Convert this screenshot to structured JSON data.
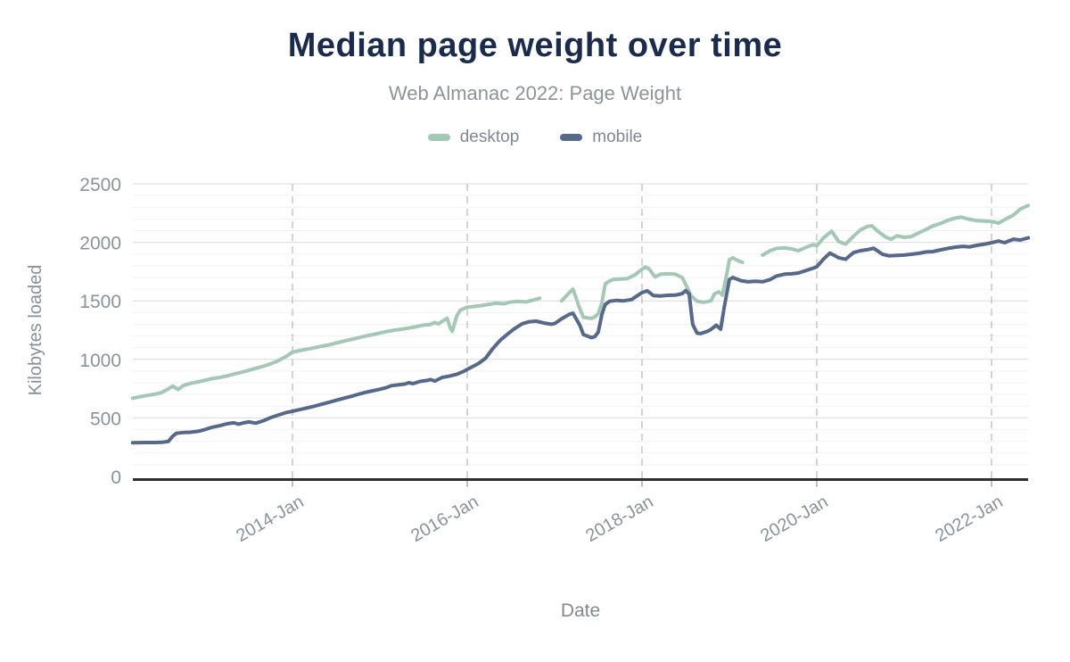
{
  "header": {
    "title": "Median page weight over time",
    "subtitle": "Web Almanac 2022: Page Weight"
  },
  "legend": [
    {
      "name": "desktop",
      "label": "desktop",
      "color": "#a3c9b4"
    },
    {
      "name": "mobile",
      "label": "mobile",
      "color": "#57698b"
    }
  ],
  "colors": {
    "title": "#1b2b4d",
    "subtitle": "#8d939b",
    "axis_line": "#2f2f2f",
    "tick_text": "#8a929b",
    "grid_minor": "#f2f2f2",
    "grid_major": "#dcdcdc",
    "grid_vertical_dashed": "#c9c9c9",
    "desktop": "#a3c9b4",
    "mobile": "#57698b"
  },
  "chart_data": {
    "type": "line",
    "title": "Median page weight over time",
    "subtitle": "Web Almanac 2022: Page Weight",
    "xlabel": "Date",
    "ylabel": "Kilobytes loaded",
    "x_unit": "decimal_year",
    "xlim": [
      2012.17,
      2022.42
    ],
    "ylim": [
      0,
      2500
    ],
    "y_ticks": [
      0,
      500,
      1000,
      1500,
      2000,
      2500
    ],
    "x_ticks": [
      {
        "value": 2014,
        "label": "2014-Jan"
      },
      {
        "value": 2016,
        "label": "2016-Jan"
      },
      {
        "value": 2018,
        "label": "2018-Jan"
      },
      {
        "value": 2020,
        "label": "2020-Jan"
      },
      {
        "value": 2022,
        "label": "2022-Jan"
      }
    ],
    "grid": {
      "minor_step": 100,
      "major_step": 500,
      "vertical": "dashed at x ticks",
      "legend_position": "top"
    },
    "series": [
      {
        "name": "desktop",
        "color": "#a3c9b4",
        "points": [
          [
            2012.17,
            668
          ],
          [
            2012.25,
            680
          ],
          [
            2012.33,
            691
          ],
          [
            2012.42,
            702
          ],
          [
            2012.5,
            716
          ],
          [
            2012.58,
            748
          ],
          [
            2012.63,
            772
          ],
          [
            2012.69,
            742
          ],
          [
            2012.75,
            776
          ],
          [
            2012.83,
            794
          ],
          [
            2012.92,
            808
          ],
          [
            2013.0,
            822
          ],
          [
            2013.08,
            836
          ],
          [
            2013.17,
            846
          ],
          [
            2013.25,
            858
          ],
          [
            2013.33,
            874
          ],
          [
            2013.42,
            890
          ],
          [
            2013.5,
            906
          ],
          [
            2013.58,
            924
          ],
          [
            2013.67,
            942
          ],
          [
            2013.75,
            962
          ],
          [
            2013.83,
            986
          ],
          [
            2013.92,
            1022
          ],
          [
            2014.0,
            1062
          ],
          [
            2014.08,
            1075
          ],
          [
            2014.17,
            1088
          ],
          [
            2014.25,
            1098
          ],
          [
            2014.33,
            1112
          ],
          [
            2014.42,
            1124
          ],
          [
            2014.5,
            1140
          ],
          [
            2014.58,
            1154
          ],
          [
            2014.67,
            1170
          ],
          [
            2014.75,
            1184
          ],
          [
            2014.83,
            1198
          ],
          [
            2014.92,
            1212
          ],
          [
            2015.0,
            1225
          ],
          [
            2015.08,
            1238
          ],
          [
            2015.17,
            1250
          ],
          [
            2015.25,
            1258
          ],
          [
            2015.33,
            1268
          ],
          [
            2015.42,
            1280
          ],
          [
            2015.5,
            1293
          ],
          [
            2015.58,
            1298
          ],
          [
            2015.63,
            1315
          ],
          [
            2015.67,
            1302
          ],
          [
            2015.71,
            1325
          ],
          [
            2015.77,
            1350
          ],
          [
            2015.81,
            1260
          ],
          [
            2015.83,
            1240
          ],
          [
            2015.88,
            1370
          ],
          [
            2015.92,
            1420
          ],
          [
            2016.0,
            1447
          ],
          [
            2016.08,
            1452
          ],
          [
            2016.17,
            1460
          ],
          [
            2016.25,
            1470
          ],
          [
            2016.33,
            1480
          ],
          [
            2016.42,
            1475
          ],
          [
            2016.5,
            1490
          ],
          [
            2016.58,
            1496
          ],
          [
            2016.67,
            1491
          ],
          [
            2016.75,
            1505
          ],
          [
            2016.83,
            1522
          ],
          [
            2016.92,
            null
          ],
          [
            2017.0,
            null
          ],
          [
            2017.08,
            1500
          ],
          [
            2017.17,
            1572
          ],
          [
            2017.21,
            1600
          ],
          [
            2017.29,
            1430
          ],
          [
            2017.33,
            1360
          ],
          [
            2017.42,
            1350
          ],
          [
            2017.46,
            1362
          ],
          [
            2017.5,
            1392
          ],
          [
            2017.54,
            1480
          ],
          [
            2017.58,
            1645
          ],
          [
            2017.63,
            1670
          ],
          [
            2017.67,
            1682
          ],
          [
            2017.75,
            1686
          ],
          [
            2017.83,
            1690
          ],
          [
            2017.92,
            1722
          ],
          [
            2018.0,
            1770
          ],
          [
            2018.04,
            1790
          ],
          [
            2018.08,
            1774
          ],
          [
            2018.15,
            1704
          ],
          [
            2018.21,
            1727
          ],
          [
            2018.29,
            1731
          ],
          [
            2018.38,
            1728
          ],
          [
            2018.46,
            1700
          ],
          [
            2018.5,
            1640
          ],
          [
            2018.56,
            1546
          ],
          [
            2018.63,
            1496
          ],
          [
            2018.71,
            1488
          ],
          [
            2018.79,
            1500
          ],
          [
            2018.83,
            1560
          ],
          [
            2018.88,
            1577
          ],
          [
            2018.92,
            1548
          ],
          [
            2018.96,
            1690
          ],
          [
            2019.0,
            1852
          ],
          [
            2019.04,
            1867
          ],
          [
            2019.1,
            1843
          ],
          [
            2019.15,
            1829
          ],
          [
            2019.21,
            null
          ],
          [
            2019.29,
            null
          ],
          [
            2019.38,
            1890
          ],
          [
            2019.46,
            1926
          ],
          [
            2019.54,
            1948
          ],
          [
            2019.63,
            1952
          ],
          [
            2019.71,
            1944
          ],
          [
            2019.79,
            1928
          ],
          [
            2019.88,
            1958
          ],
          [
            2019.96,
            1980
          ],
          [
            2020.0,
            1970
          ],
          [
            2020.08,
            2040
          ],
          [
            2020.17,
            2095
          ],
          [
            2020.25,
            2008
          ],
          [
            2020.33,
            1984
          ],
          [
            2020.42,
            2052
          ],
          [
            2020.5,
            2106
          ],
          [
            2020.58,
            2136
          ],
          [
            2020.63,
            2141
          ],
          [
            2020.71,
            2088
          ],
          [
            2020.79,
            2044
          ],
          [
            2020.85,
            2027
          ],
          [
            2020.92,
            2056
          ],
          [
            2021.0,
            2043
          ],
          [
            2021.08,
            2049
          ],
          [
            2021.17,
            2082
          ],
          [
            2021.25,
            2110
          ],
          [
            2021.33,
            2140
          ],
          [
            2021.42,
            2162
          ],
          [
            2021.5,
            2188
          ],
          [
            2021.58,
            2206
          ],
          [
            2021.65,
            2216
          ],
          [
            2021.75,
            2196
          ],
          [
            2021.83,
            2186
          ],
          [
            2021.92,
            2182
          ],
          [
            2022.0,
            2178
          ],
          [
            2022.08,
            2164
          ],
          [
            2022.17,
            2202
          ],
          [
            2022.25,
            2232
          ],
          [
            2022.33,
            2284
          ],
          [
            2022.42,
            2315
          ]
        ]
      },
      {
        "name": "mobile",
        "color": "#57698b",
        "points": [
          [
            2012.17,
            288
          ],
          [
            2012.25,
            289
          ],
          [
            2012.33,
            290
          ],
          [
            2012.42,
            290
          ],
          [
            2012.5,
            291
          ],
          [
            2012.58,
            299
          ],
          [
            2012.63,
            344
          ],
          [
            2012.67,
            368
          ],
          [
            2012.75,
            375
          ],
          [
            2012.83,
            377
          ],
          [
            2012.92,
            386
          ],
          [
            2013.0,
            401
          ],
          [
            2013.08,
            420
          ],
          [
            2013.17,
            434
          ],
          [
            2013.25,
            450
          ],
          [
            2013.33,
            458
          ],
          [
            2013.38,
            447
          ],
          [
            2013.46,
            460
          ],
          [
            2013.5,
            466
          ],
          [
            2013.58,
            455
          ],
          [
            2013.67,
            476
          ],
          [
            2013.75,
            502
          ],
          [
            2013.83,
            522
          ],
          [
            2013.92,
            544
          ],
          [
            2014.0,
            557
          ],
          [
            2014.08,
            570
          ],
          [
            2014.17,
            585
          ],
          [
            2014.25,
            600
          ],
          [
            2014.33,
            616
          ],
          [
            2014.42,
            634
          ],
          [
            2014.5,
            650
          ],
          [
            2014.58,
            666
          ],
          [
            2014.67,
            684
          ],
          [
            2014.75,
            701
          ],
          [
            2014.83,
            717
          ],
          [
            2014.92,
            732
          ],
          [
            2015.0,
            745
          ],
          [
            2015.08,
            760
          ],
          [
            2015.13,
            775
          ],
          [
            2015.21,
            782
          ],
          [
            2015.29,
            790
          ],
          [
            2015.33,
            800
          ],
          [
            2015.38,
            793
          ],
          [
            2015.46,
            812
          ],
          [
            2015.54,
            820
          ],
          [
            2015.58,
            828
          ],
          [
            2015.63,
            815
          ],
          [
            2015.71,
            845
          ],
          [
            2015.79,
            856
          ],
          [
            2015.88,
            872
          ],
          [
            2015.96,
            898
          ],
          [
            2016.0,
            915
          ],
          [
            2016.08,
            945
          ],
          [
            2016.13,
            965
          ],
          [
            2016.21,
            1010
          ],
          [
            2016.29,
            1090
          ],
          [
            2016.38,
            1165
          ],
          [
            2016.46,
            1215
          ],
          [
            2016.54,
            1262
          ],
          [
            2016.63,
            1305
          ],
          [
            2016.71,
            1322
          ],
          [
            2016.79,
            1326
          ],
          [
            2016.88,
            1310
          ],
          [
            2016.96,
            1300
          ],
          [
            2017.0,
            1306
          ],
          [
            2017.08,
            1346
          ],
          [
            2017.17,
            1386
          ],
          [
            2017.21,
            1394
          ],
          [
            2017.29,
            1290
          ],
          [
            2017.33,
            1212
          ],
          [
            2017.42,
            1186
          ],
          [
            2017.46,
            1194
          ],
          [
            2017.5,
            1234
          ],
          [
            2017.54,
            1380
          ],
          [
            2017.58,
            1470
          ],
          [
            2017.63,
            1496
          ],
          [
            2017.71,
            1504
          ],
          [
            2017.79,
            1500
          ],
          [
            2017.88,
            1511
          ],
          [
            2017.96,
            1550
          ],
          [
            2018.0,
            1570
          ],
          [
            2018.06,
            1585
          ],
          [
            2018.13,
            1546
          ],
          [
            2018.21,
            1542
          ],
          [
            2018.29,
            1547
          ],
          [
            2018.38,
            1549
          ],
          [
            2018.46,
            1562
          ],
          [
            2018.5,
            1588
          ],
          [
            2018.54,
            1558
          ],
          [
            2018.58,
            1300
          ],
          [
            2018.63,
            1224
          ],
          [
            2018.67,
            1220
          ],
          [
            2018.75,
            1240
          ],
          [
            2018.79,
            1256
          ],
          [
            2018.85,
            1292
          ],
          [
            2018.9,
            1258
          ],
          [
            2018.94,
            1440
          ],
          [
            2019.0,
            1682
          ],
          [
            2019.04,
            1700
          ],
          [
            2019.13,
            1673
          ],
          [
            2019.21,
            1662
          ],
          [
            2019.29,
            1668
          ],
          [
            2019.38,
            1663
          ],
          [
            2019.46,
            1680
          ],
          [
            2019.54,
            1712
          ],
          [
            2019.63,
            1728
          ],
          [
            2019.71,
            1731
          ],
          [
            2019.79,
            1738
          ],
          [
            2019.88,
            1760
          ],
          [
            2019.96,
            1780
          ],
          [
            2020.0,
            1791
          ],
          [
            2020.08,
            1858
          ],
          [
            2020.15,
            1908
          ],
          [
            2020.25,
            1868
          ],
          [
            2020.33,
            1855
          ],
          [
            2020.42,
            1912
          ],
          [
            2020.5,
            1928
          ],
          [
            2020.58,
            1937
          ],
          [
            2020.65,
            1950
          ],
          [
            2020.75,
            1899
          ],
          [
            2020.83,
            1884
          ],
          [
            2020.92,
            1888
          ],
          [
            2021.0,
            1891
          ],
          [
            2021.08,
            1898
          ],
          [
            2021.17,
            1906
          ],
          [
            2021.25,
            1918
          ],
          [
            2021.33,
            1921
          ],
          [
            2021.42,
            1936
          ],
          [
            2021.5,
            1948
          ],
          [
            2021.58,
            1958
          ],
          [
            2021.67,
            1966
          ],
          [
            2021.75,
            1961
          ],
          [
            2021.83,
            1974
          ],
          [
            2021.92,
            1985
          ],
          [
            2022.0,
            1996
          ],
          [
            2022.08,
            2011
          ],
          [
            2022.15,
            1997
          ],
          [
            2022.25,
            2027
          ],
          [
            2022.33,
            2020
          ],
          [
            2022.42,
            2038
          ]
        ]
      }
    ]
  }
}
